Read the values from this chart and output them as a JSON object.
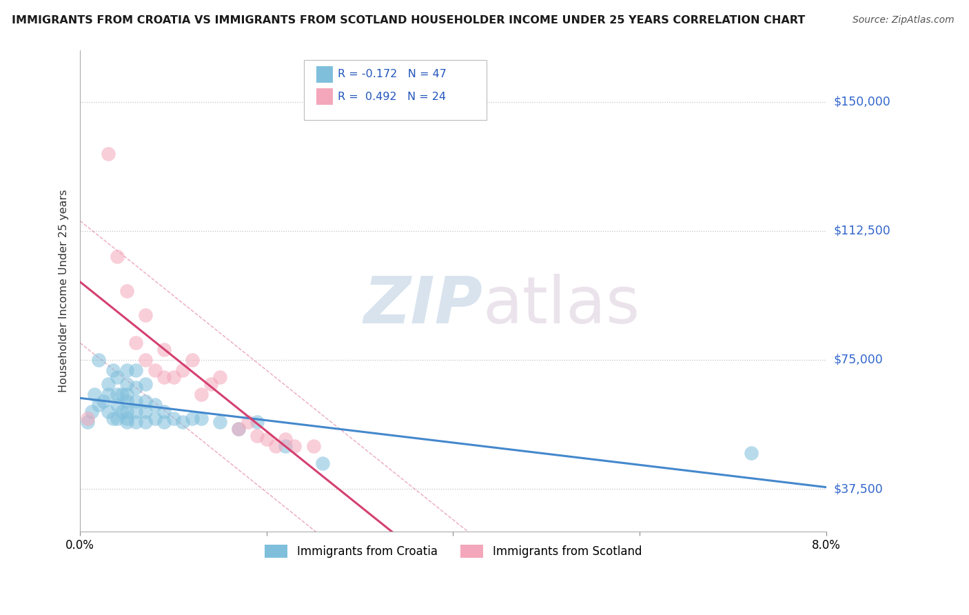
{
  "title": "IMMIGRANTS FROM CROATIA VS IMMIGRANTS FROM SCOTLAND HOUSEHOLDER INCOME UNDER 25 YEARS CORRELATION CHART",
  "source": "Source: ZipAtlas.com",
  "ylabel": "Householder Income Under 25 years",
  "xlim": [
    0.0,
    0.08
  ],
  "ylim": [
    25000,
    165000
  ],
  "yticks": [
    37500,
    75000,
    112500,
    150000
  ],
  "ytick_labels": [
    "$37,500",
    "$75,000",
    "$112,500",
    "$150,000"
  ],
  "xticks": [
    0.0,
    0.02,
    0.04,
    0.06,
    0.08
  ],
  "xtick_labels": [
    "0.0%",
    "",
    "",
    "",
    "8.0%"
  ],
  "legend_croatia": "Immigrants from Croatia",
  "legend_scotland": "Immigrants from Scotland",
  "R_croatia": -0.172,
  "N_croatia": 47,
  "R_scotland": 0.492,
  "N_scotland": 24,
  "color_croatia": "#7fbfdc",
  "color_scotland": "#f4a7ba",
  "color_croatia_line": "#4488cc",
  "color_scotland_line": "#d44070",
  "watermark_zip": "ZIP",
  "watermark_atlas": "atlas",
  "croatia_x": [
    0.0008,
    0.0012,
    0.0015,
    0.002,
    0.002,
    0.0025,
    0.003,
    0.003,
    0.003,
    0.0035,
    0.0035,
    0.004,
    0.004,
    0.004,
    0.004,
    0.0045,
    0.0045,
    0.005,
    0.005,
    0.005,
    0.005,
    0.005,
    0.005,
    0.005,
    0.006,
    0.006,
    0.006,
    0.006,
    0.006,
    0.007,
    0.007,
    0.007,
    0.007,
    0.008,
    0.008,
    0.009,
    0.009,
    0.01,
    0.011,
    0.012,
    0.013,
    0.015,
    0.017,
    0.019,
    0.022,
    0.026,
    0.072
  ],
  "croatia_y": [
    57000,
    60000,
    65000,
    62000,
    75000,
    63000,
    60000,
    65000,
    68000,
    58000,
    72000,
    58000,
    62000,
    65000,
    70000,
    60000,
    65000,
    57000,
    58000,
    60000,
    63000,
    65000,
    68000,
    72000,
    57000,
    60000,
    63000,
    67000,
    72000,
    57000,
    60000,
    63000,
    68000,
    58000,
    62000,
    57000,
    60000,
    58000,
    57000,
    58000,
    58000,
    57000,
    55000,
    57000,
    50000,
    45000,
    48000
  ],
  "scotland_x": [
    0.0008,
    0.003,
    0.004,
    0.005,
    0.006,
    0.007,
    0.007,
    0.008,
    0.009,
    0.009,
    0.01,
    0.011,
    0.012,
    0.013,
    0.014,
    0.015,
    0.017,
    0.018,
    0.019,
    0.02,
    0.021,
    0.022,
    0.023,
    0.025
  ],
  "scotland_y": [
    58000,
    135000,
    105000,
    95000,
    80000,
    75000,
    88000,
    72000,
    70000,
    78000,
    70000,
    72000,
    75000,
    65000,
    68000,
    70000,
    55000,
    57000,
    53000,
    52000,
    50000,
    52000,
    50000,
    50000
  ]
}
